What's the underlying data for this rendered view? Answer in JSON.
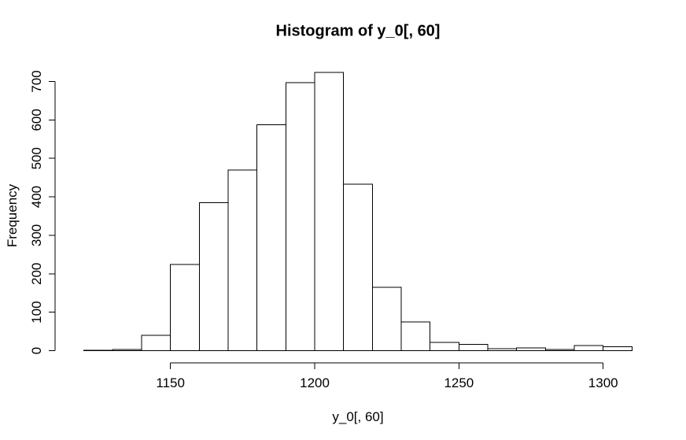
{
  "window": {
    "background": "#ffffff",
    "foreground": "#000000"
  },
  "chart_data": {
    "type": "bar",
    "subtype": "histogram",
    "title": "Histogram of y_0[, 60]",
    "xlabel": "y_0[, 60]",
    "ylabel": "Frequency",
    "bin_breaks": [
      1120,
      1130,
      1140,
      1150,
      1160,
      1170,
      1180,
      1190,
      1200,
      1210,
      1220,
      1230,
      1240,
      1250,
      1260,
      1270,
      1280,
      1290,
      1300,
      1310
    ],
    "counts": [
      1,
      3,
      40,
      224,
      385,
      470,
      587,
      697,
      724,
      433,
      165,
      75,
      22,
      16,
      5,
      7,
      3,
      13,
      10
    ],
    "x_ticks": [
      1150,
      1200,
      1250,
      1300
    ],
    "y_ticks": [
      0,
      100,
      200,
      300,
      400,
      500,
      600,
      700
    ],
    "xlim": [
      1120,
      1310
    ],
    "ylim": [
      0,
      724
    ],
    "grid": false,
    "legend": null,
    "bar_fill": "#ffffff",
    "bar_stroke": "#000000",
    "axis_color": "#000000"
  }
}
